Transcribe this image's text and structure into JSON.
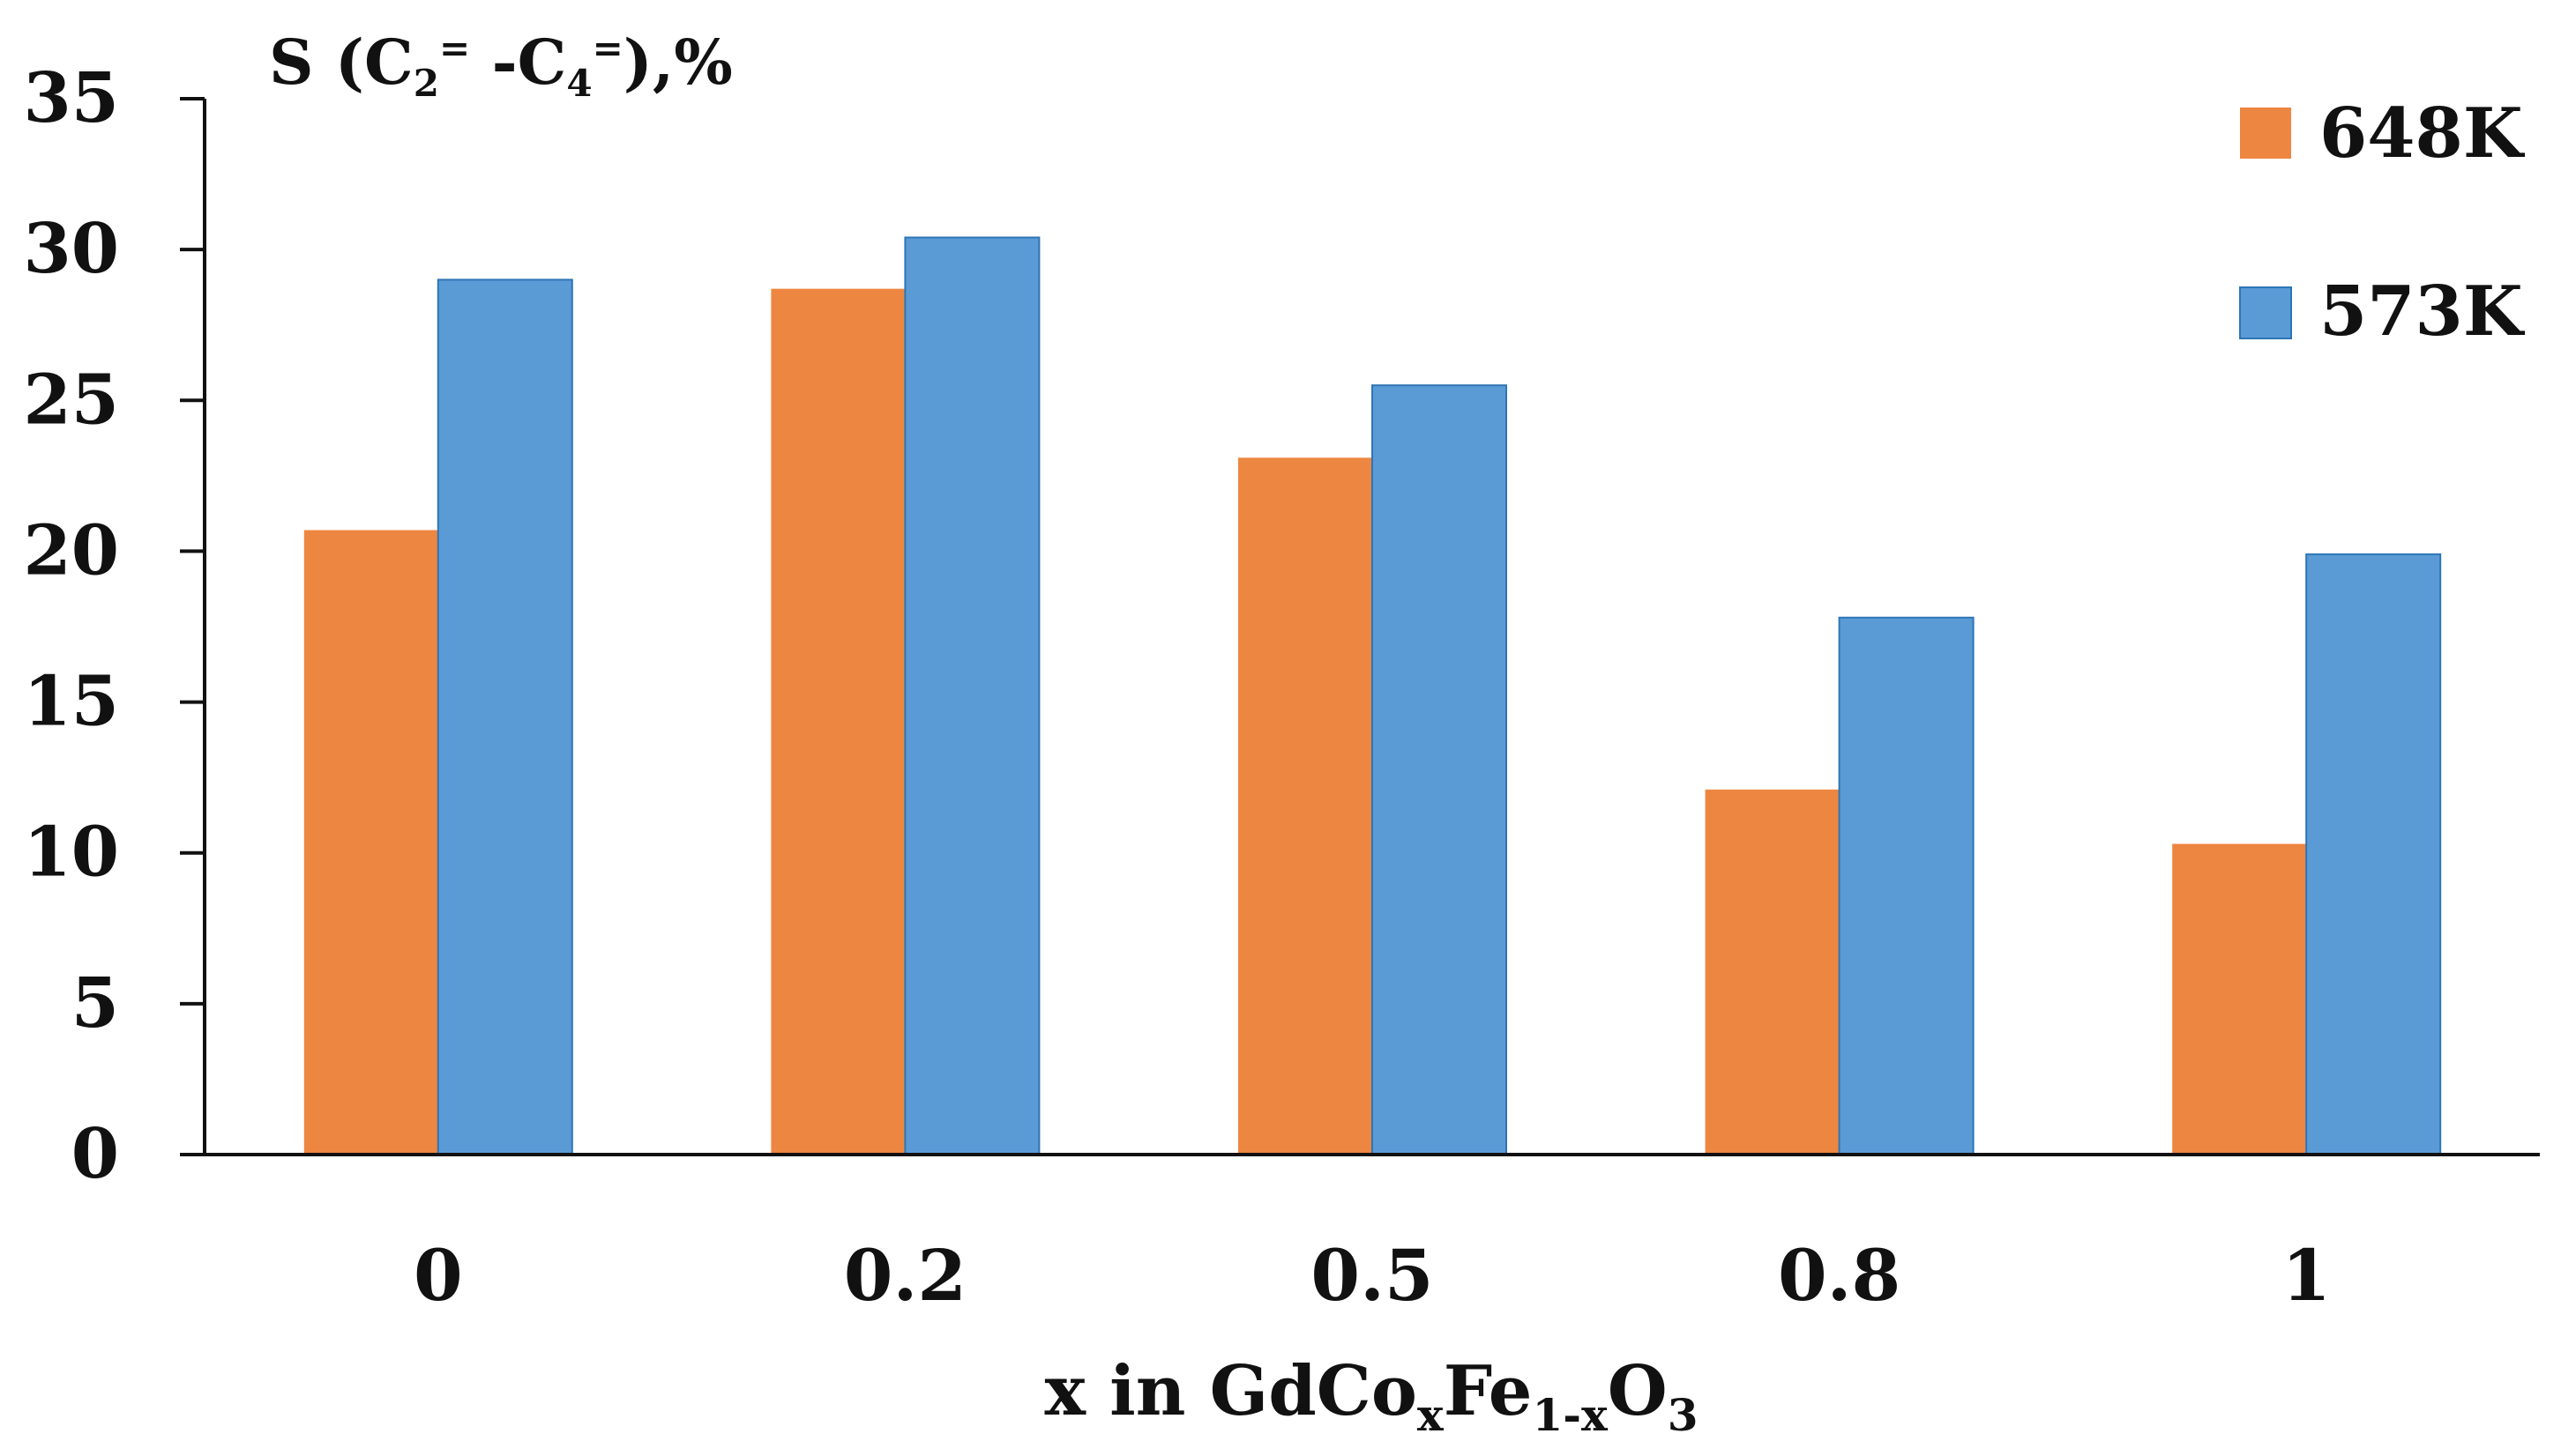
{
  "chart_data": {
    "type": "bar",
    "title": "",
    "ylabel": {
      "prefix": "S (C",
      "sub1": "2",
      "sup1": "=",
      "middle": " -C",
      "sub2": "4",
      "sup2": "=",
      "suffix": "),%"
    },
    "xlabel": {
      "prefix": "x in GdCo",
      "sub1": "x",
      "middle": "Fe",
      "sub2": "1-x",
      "middle2": "O",
      "sub3": "3"
    },
    "categories": [
      "0",
      "0.2",
      "0.5",
      "0.8",
      "1"
    ],
    "series": [
      {
        "name": "648K",
        "color": "#ED8641",
        "values": [
          20.7,
          28.7,
          23.1,
          12.1,
          10.3
        ]
      },
      {
        "name": "573K",
        "color": "#5B9BD5",
        "values": [
          29.0,
          30.4,
          25.5,
          17.8,
          19.9
        ]
      }
    ],
    "ylim": [
      0,
      35
    ],
    "yticks": [
      0,
      5,
      10,
      15,
      20,
      25,
      30,
      35
    ],
    "grid": false,
    "legend_position": "top-right"
  }
}
